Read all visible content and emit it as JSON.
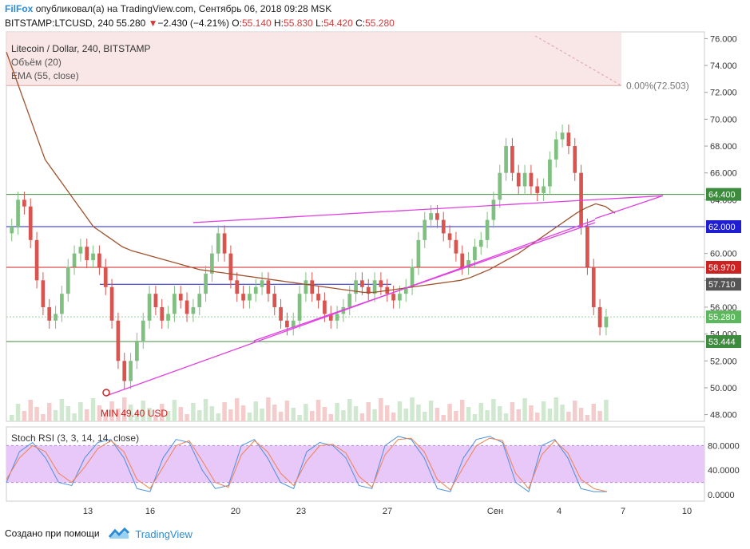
{
  "header": {
    "brand": "FilFox",
    "published": "опубликовал(а) на TradingView.com, Сентябрь 06, 2018 09:28 MSK",
    "symbol": "BITSTAMP:LTCUSD, 240",
    "price": "55.280",
    "change_arrow": "▼",
    "change": "−2.430 (−4.21%)",
    "o_label": "O:",
    "o_value": "55.140",
    "h_label": "H:",
    "h_value": "55.830",
    "l_label": "L:",
    "l_value": "54.420",
    "c_label": "C:",
    "c_value": "55.280"
  },
  "footer": {
    "created_with": "Создано при помощи",
    "tradingview": "TradingView"
  },
  "colors": {
    "up": "#7fbf7f",
    "down": "#d9534f",
    "ema": "#a0522d",
    "trendline": "#e040e0",
    "green_level": "#3d8b3d",
    "blue_level": "#1f1fd1",
    "red_level": "#cc2222",
    "rsi_band": "#e8c8f8",
    "stoch_k": "#4a90e2",
    "stoch_d": "#f08050"
  },
  "chart_data": {
    "type": "candlestick",
    "title": "Litecoin / Dollar, 240, BITSTAMP",
    "indicators": [
      "Объём (20)",
      "EMA (55, close)"
    ],
    "y_ticks": [
      "76.000",
      "74.000",
      "72.000",
      "70.000",
      "68.000",
      "66.000",
      "64.000",
      "62.000",
      "60.000",
      "58.000",
      "56.000",
      "54.000",
      "52.000",
      "50.000",
      "48.000"
    ],
    "ylim": [
      47.5,
      76.5
    ],
    "x_ticks": [
      "13",
      "16",
      "20",
      "23",
      "27",
      "Сен",
      "4",
      "7",
      "10"
    ],
    "levels": [
      {
        "label": "64.400",
        "value": 64.4,
        "color": "#3d8b3d"
      },
      {
        "label": "62.000",
        "value": 62.0,
        "color": "#1f1fd1"
      },
      {
        "label": "58.970",
        "value": 58.97,
        "color": "#cc2222"
      },
      {
        "label": "57.710",
        "value": 57.71,
        "color": "#555555"
      },
      {
        "label": "55.280",
        "value": 55.28,
        "color": "#5cb85c"
      },
      {
        "label": "53.444",
        "value": 53.444,
        "color": "#3d8b3d"
      }
    ],
    "fib_label": "0.00%(72.503)",
    "fib_value": 72.503,
    "min_label": "MIN 49.40 USD",
    "min_value": 49.4,
    "candles_close": [
      62,
      64,
      63.5,
      61,
      58,
      56,
      55,
      55.5,
      57,
      59,
      60,
      60.5,
      59.5,
      60,
      59,
      57.5,
      55,
      52,
      50.5,
      52,
      53.5,
      55,
      57,
      56,
      55,
      55.5,
      57,
      56.5,
      55.5,
      56,
      57,
      58.5,
      60,
      61.5,
      60,
      58,
      57,
      56.5,
      57,
      57.5,
      58,
      57,
      56,
      55,
      54.5,
      55,
      57,
      58,
      57,
      56.5,
      55.5,
      55,
      55.5,
      56,
      57,
      58,
      57.5,
      57,
      58,
      57.5,
      57,
      56.5,
      57,
      57.5,
      59,
      61,
      62.5,
      63,
      62.5,
      61.5,
      61,
      60,
      59,
      59.5,
      60.5,
      61,
      62.5,
      64,
      66,
      68,
      66,
      65,
      66,
      65,
      64.5,
      65,
      67,
      68.5,
      69,
      68,
      66,
      62,
      59,
      56,
      54.5,
      55.28
    ],
    "ema": [
      75,
      73,
      71,
      69,
      67,
      66,
      65,
      64,
      63,
      62,
      61.5,
      61,
      60.5,
      60.2,
      60,
      59.8,
      59.6,
      59.4,
      59.2,
      59,
      58.8,
      58.7,
      58.6,
      58.5,
      58.4,
      58.3,
      58.2,
      58.1,
      58,
      57.9,
      57.8,
      57.7,
      57.6,
      57.5,
      57.4,
      57.3,
      57.2,
      57.1,
      57.1,
      57.2,
      57.3,
      57.4,
      57.5,
      57.6,
      57.7,
      57.8,
      57.9,
      58,
      58.2,
      58.5,
      58.8,
      59.2,
      59.6,
      60,
      60.5,
      61,
      61.5,
      62,
      62.5,
      63,
      63.4,
      63.7,
      63.5,
      63
    ],
    "stoch_rsi": {
      "label": "Stoch RSI (3, 3, 14, 14, close)",
      "y_ticks": [
        "80.0000",
        "40.0000",
        "0.0000"
      ],
      "ylim": [
        0,
        100
      ],
      "k": [
        20,
        70,
        85,
        60,
        20,
        15,
        60,
        85,
        90,
        60,
        10,
        5,
        60,
        90,
        85,
        40,
        10,
        15,
        80,
        90,
        60,
        20,
        10,
        70,
        85,
        80,
        60,
        15,
        10,
        80,
        95,
        90,
        60,
        10,
        5,
        60,
        90,
        95,
        85,
        20,
        5,
        80,
        90,
        60,
        10,
        5,
        5
      ],
      "d": [
        25,
        60,
        80,
        70,
        35,
        20,
        45,
        75,
        88,
        70,
        25,
        10,
        45,
        80,
        88,
        55,
        20,
        12,
        65,
        88,
        70,
        35,
        15,
        55,
        80,
        82,
        68,
        30,
        12,
        65,
        90,
        92,
        70,
        25,
        8,
        45,
        80,
        92,
        88,
        35,
        10,
        65,
        88,
        68,
        25,
        10,
        5
      ]
    }
  }
}
